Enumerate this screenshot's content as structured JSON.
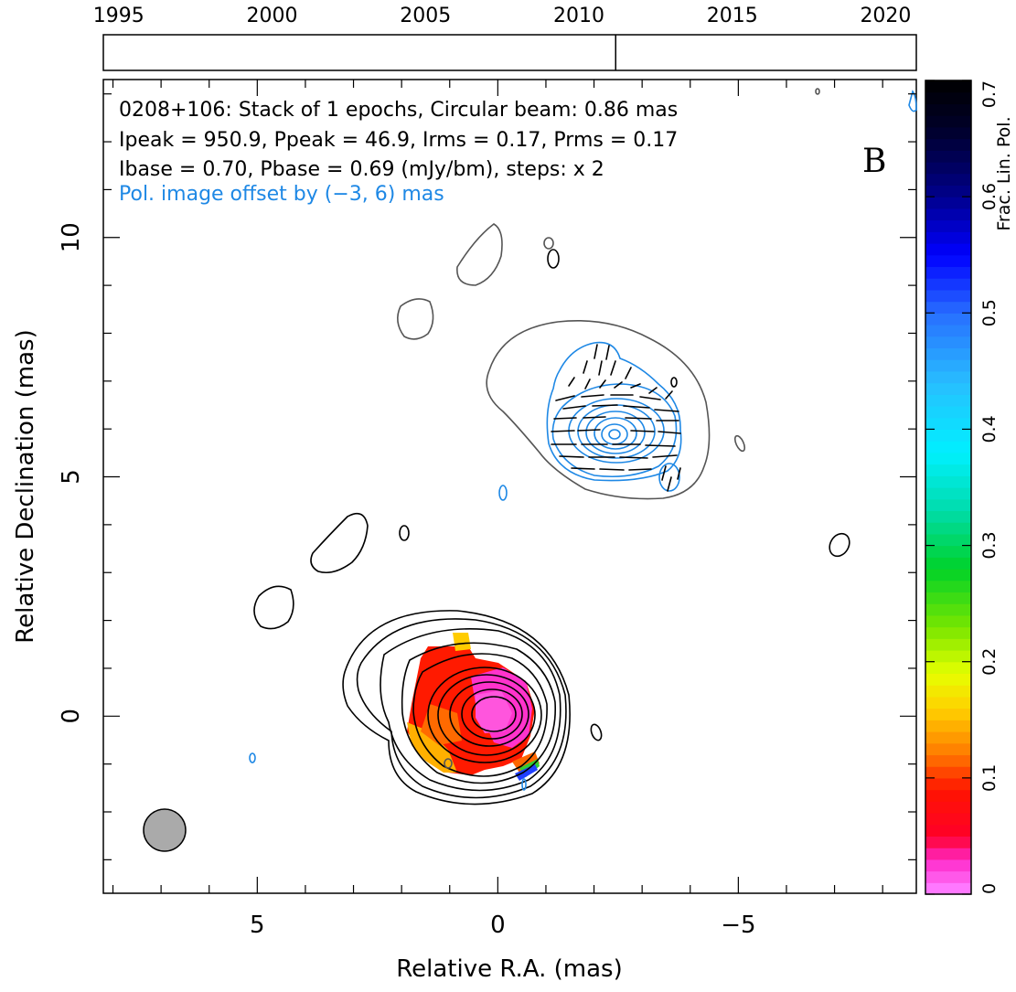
{
  "chart_data": {
    "type": "heatmap",
    "source": "0208+106",
    "panel_label": "B",
    "annotations": [
      "0208+106: Stack of 1 epochs, Circular beam: 0.86 mas",
      "Ipeak = 950.9, Ppeak = 46.9, Irms = 0.17, Prms = 0.17",
      "Ibase = 0.70, Pbase = 0.69 (mJy/bm), steps: x 2"
    ],
    "pol_offset_note": "Pol. image offset by (−3, 6) mas",
    "xlabel": "Relative R.A. (mas)",
    "ylabel": "Relative Declination (mas)",
    "xlim": [
      8.2,
      -8.7
    ],
    "ylim": [
      -3.7,
      13.3
    ],
    "x_ticks": [
      {
        "v": 5,
        "label": "5"
      },
      {
        "v": 0,
        "label": "0"
      },
      {
        "v": -5,
        "label": "−5"
      }
    ],
    "y_ticks": [
      {
        "v": 0,
        "label": "0"
      },
      {
        "v": 5,
        "label": "5"
      },
      {
        "v": 10,
        "label": "10"
      }
    ],
    "timeline": {
      "years": [
        "1995",
        "2000",
        "2005",
        "2010",
        "2015",
        "2020"
      ],
      "range": [
        1994.5,
        2021
      ],
      "epochs": [
        2011.2
      ]
    },
    "colorbar": {
      "label": "Frac. Lin. Pol.",
      "range": [
        0,
        0.7
      ],
      "ticks": [
        "0",
        "0.1",
        "0.2",
        "0.3",
        "0.4",
        "0.5",
        "0.6",
        "0.7"
      ]
    },
    "beam_major_mas": 0.86,
    "colors": {
      "pol_contour": "#1e88e5",
      "stokes_i_low": "#555555",
      "stokes_i": "#000000",
      "beam": "#aaaaaa"
    }
  }
}
